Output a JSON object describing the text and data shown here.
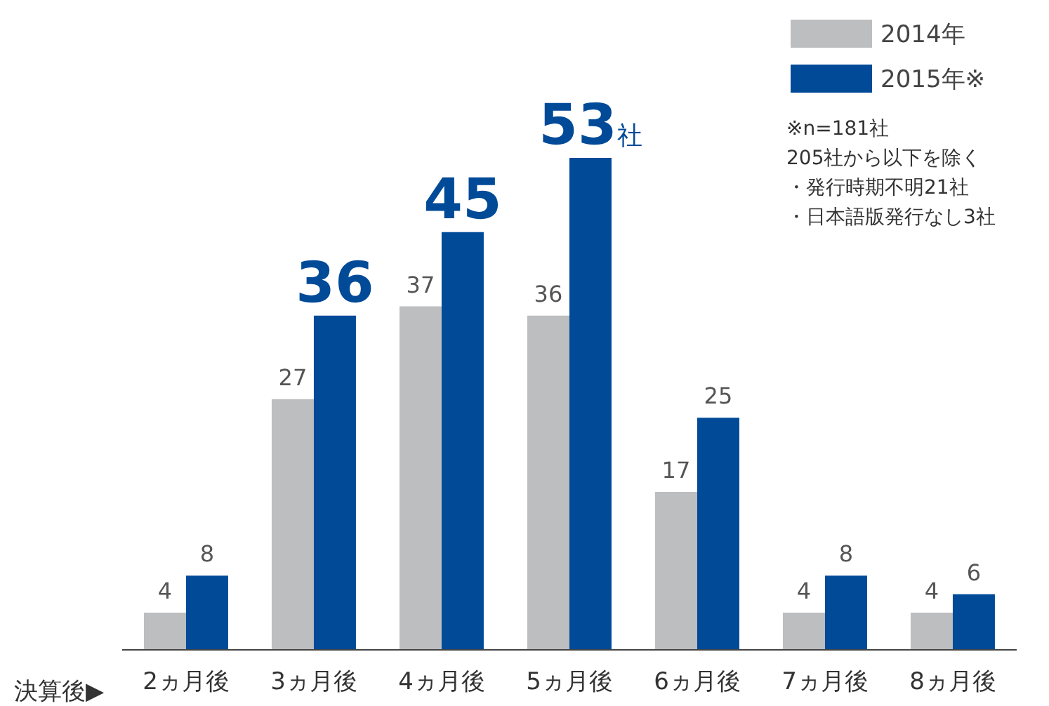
{
  "chart_data": {
    "type": "bar",
    "xlabel": "決算後▶",
    "categories": [
      "2ヵ月後",
      "3ヵ月後",
      "4ヵ月後",
      "5ヵ月後",
      "6ヵ月後",
      "7ヵ月後",
      "8ヵ月後"
    ],
    "series": [
      {
        "name": "2014年",
        "color": "#bcbec0",
        "values": [
          4,
          27,
          37,
          36,
          17,
          4,
          4
        ],
        "value_labels": [
          "4",
          "27",
          "37",
          "36",
          "17",
          "4",
          "4"
        ]
      },
      {
        "name": "2015年※",
        "color": "#004a98",
        "values": [
          8,
          36,
          45,
          53,
          25,
          8,
          6
        ],
        "value_labels": [
          "8",
          "36",
          "45",
          "53社",
          "25",
          "8",
          "6"
        ]
      }
    ],
    "ylim": [
      0,
      70
    ],
    "legend": "top right",
    "grid": false,
    "annotations": [
      "※n=181社",
      "205社から以下を除く",
      "・発行時期不明21社",
      "・日本語版発行なし3社"
    ]
  }
}
